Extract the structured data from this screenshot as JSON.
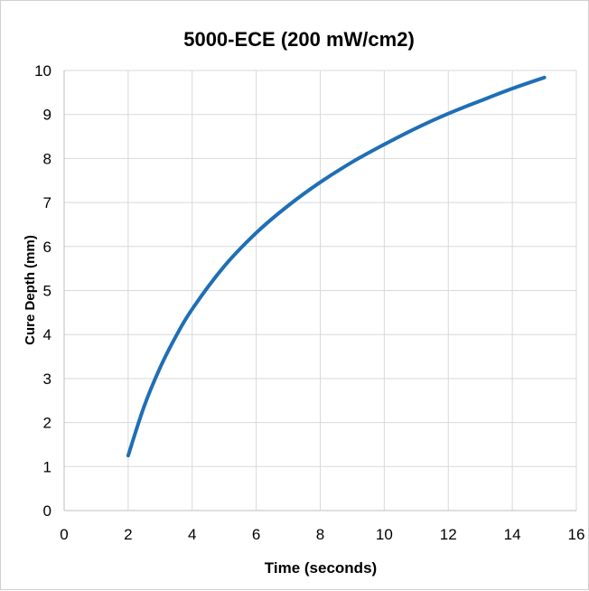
{
  "chart_data": {
    "type": "line",
    "title": "5000-ECE (200 mW/cm2)",
    "xlabel": "Time (seconds)",
    "ylabel": "Cure Depth (mm)",
    "xlim": [
      0,
      16
    ],
    "ylim": [
      0,
      10
    ],
    "xticks": [
      "0",
      "2",
      "4",
      "6",
      "8",
      "10",
      "12",
      "14",
      "16"
    ],
    "yticks": [
      "0",
      "1",
      "2",
      "3",
      "4",
      "5",
      "6",
      "7",
      "8",
      "9",
      "10"
    ],
    "grid": true,
    "legend": "none",
    "series": [
      {
        "color": "#1f6fb5",
        "x": [
          2,
          2.5,
          3,
          3.5,
          4,
          5,
          6,
          7,
          8,
          9,
          10,
          11,
          12,
          13,
          14,
          15
        ],
        "y": [
          1.25,
          2.37,
          3.25,
          3.97,
          4.58,
          5.55,
          6.31,
          6.93,
          7.46,
          7.92,
          8.32,
          8.69,
          9.02,
          9.31,
          9.59,
          9.84
        ]
      }
    ]
  }
}
